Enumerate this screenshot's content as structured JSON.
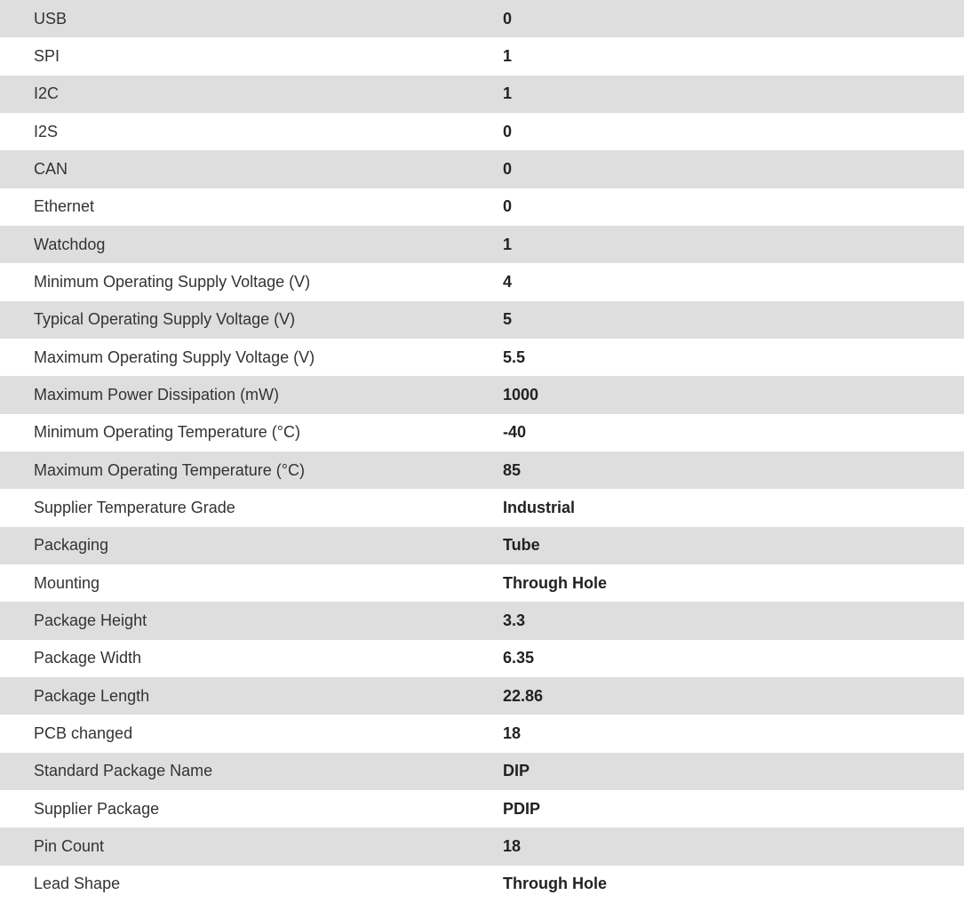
{
  "specs": [
    {
      "label": "USB",
      "value": "0"
    },
    {
      "label": "SPI",
      "value": "1"
    },
    {
      "label": "I2C",
      "value": "1"
    },
    {
      "label": "I2S",
      "value": "0"
    },
    {
      "label": "CAN",
      "value": "0"
    },
    {
      "label": "Ethernet",
      "value": "0"
    },
    {
      "label": "Watchdog",
      "value": "1"
    },
    {
      "label": "Minimum Operating Supply Voltage (V)",
      "value": "4"
    },
    {
      "label": "Typical Operating Supply Voltage (V)",
      "value": "5"
    },
    {
      "label": "Maximum Operating Supply Voltage (V)",
      "value": "5.5"
    },
    {
      "label": "Maximum Power Dissipation (mW)",
      "value": "1000"
    },
    {
      "label": "Minimum Operating Temperature (°C)",
      "value": "-40"
    },
    {
      "label": "Maximum Operating Temperature (°C)",
      "value": "85"
    },
    {
      "label": "Supplier Temperature Grade",
      "value": "Industrial"
    },
    {
      "label": "Packaging",
      "value": "Tube"
    },
    {
      "label": "Mounting",
      "value": "Through Hole"
    },
    {
      "label": "Package Height",
      "value": "3.3"
    },
    {
      "label": "Package Width",
      "value": "6.35"
    },
    {
      "label": "Package Length",
      "value": "22.86"
    },
    {
      "label": "PCB changed",
      "value": "18"
    },
    {
      "label": "Standard Package Name",
      "value": "DIP"
    },
    {
      "label": "Supplier Package",
      "value": "PDIP"
    },
    {
      "label": "Pin Count",
      "value": "18"
    },
    {
      "label": "Lead Shape",
      "value": "Through Hole"
    }
  ]
}
